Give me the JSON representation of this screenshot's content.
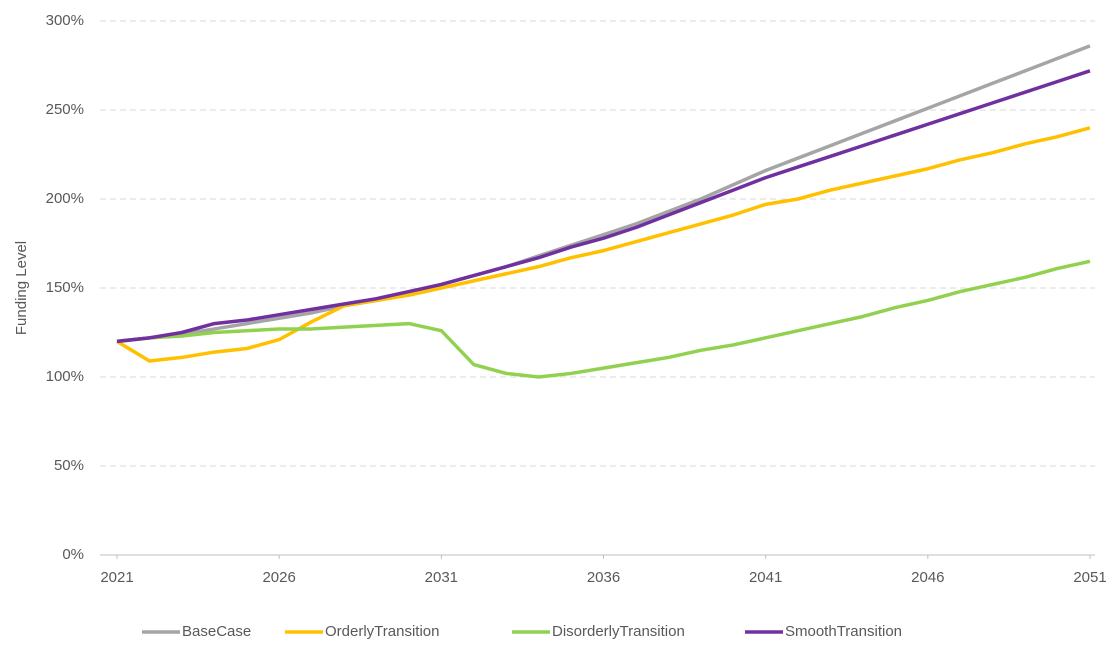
{
  "chart_data": {
    "type": "line",
    "y_label": "Funding Level",
    "x": [
      2021,
      2022,
      2023,
      2024,
      2025,
      2026,
      2027,
      2028,
      2029,
      2030,
      2031,
      2032,
      2033,
      2034,
      2035,
      2036,
      2037,
      2038,
      2039,
      2040,
      2041,
      2042,
      2043,
      2044,
      2045,
      2046,
      2047,
      2048,
      2049,
      2050,
      2051
    ],
    "xlim": [
      2021,
      2051
    ],
    "xticks": [
      2021,
      2026,
      2031,
      2036,
      2041,
      2046,
      2051
    ],
    "ylim": [
      0,
      300
    ],
    "yticks": [
      {
        "value": 0,
        "label": "0%"
      },
      {
        "value": 50,
        "label": "50%"
      },
      {
        "value": 100,
        "label": "100%"
      },
      {
        "value": 150,
        "label": "150%"
      },
      {
        "value": 200,
        "label": "200%"
      },
      {
        "value": 250,
        "label": "250%"
      },
      {
        "value": 300,
        "label": "300%"
      }
    ],
    "grid": true,
    "legend": "bottom",
    "series": [
      {
        "name": "BaseCase",
        "color": "#a5a5a5",
        "values": [
          120,
          122,
          124,
          127,
          130,
          133,
          136,
          140,
          143,
          147,
          152,
          157,
          162,
          168,
          174,
          180,
          186,
          193,
          200,
          208,
          216,
          223,
          230,
          237,
          244,
          251,
          258,
          265,
          272,
          279,
          286
        ]
      },
      {
        "name": "OrderlyTransition",
        "color": "#ffc000",
        "values": [
          120,
          109,
          111,
          114,
          116,
          121,
          131,
          140,
          143,
          146,
          150,
          154,
          158,
          162,
          167,
          171,
          176,
          181,
          186,
          191,
          197,
          200,
          205,
          209,
          213,
          217,
          222,
          226,
          231,
          235,
          240
        ]
      },
      {
        "name": "DisorderlyTransition",
        "color": "#92d050",
        "values": [
          120,
          122,
          123,
          125,
          126,
          127,
          127,
          128,
          129,
          130,
          126,
          107,
          102,
          100,
          102,
          105,
          108,
          111,
          115,
          118,
          122,
          126,
          130,
          134,
          139,
          143,
          148,
          152,
          156,
          161,
          165
        ]
      },
      {
        "name": "SmoothTransition",
        "color": "#7030a0",
        "values": [
          120,
          122,
          125,
          130,
          132,
          135,
          138,
          141,
          144,
          148,
          152,
          157,
          162,
          167,
          173,
          178,
          184,
          191,
          198,
          205,
          212,
          218,
          224,
          230,
          236,
          242,
          248,
          254,
          260,
          266,
          272
        ]
      }
    ]
  }
}
